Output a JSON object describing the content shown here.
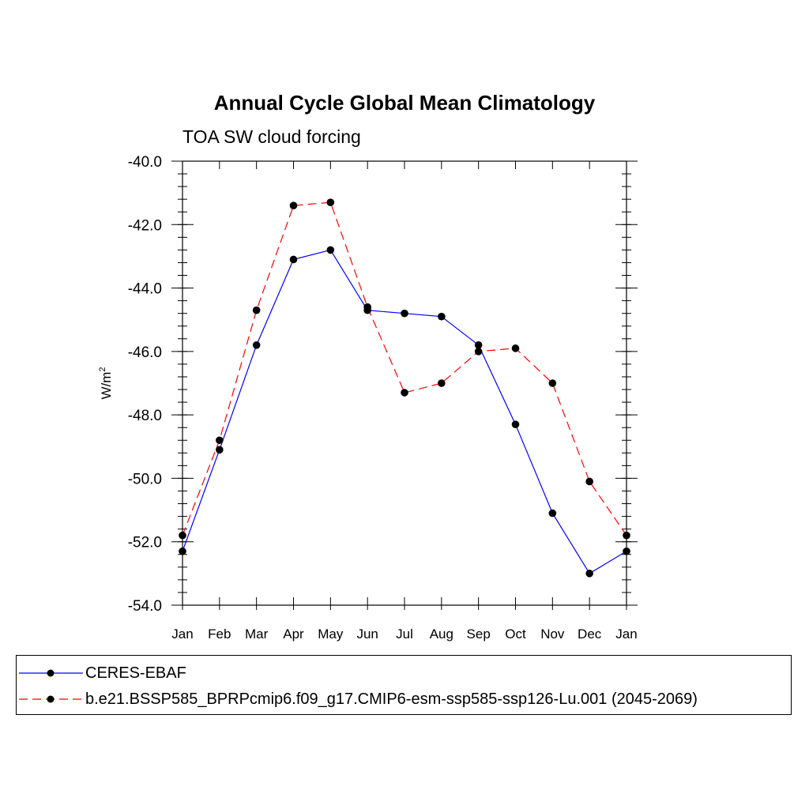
{
  "chart_data": {
    "type": "line",
    "title": "Annual Cycle Global Mean Climatology",
    "subtitle": "TOA SW cloud forcing",
    "ylabel": "W/m",
    "ylabel_superscript": "2",
    "categories": [
      "Jan",
      "Feb",
      "Mar",
      "Apr",
      "May",
      "Jun",
      "Jul",
      "Aug",
      "Sep",
      "Oct",
      "Nov",
      "Dec",
      "Jan"
    ],
    "ylim": [
      -54.0,
      -40.0
    ],
    "yticks": [
      "-40.0",
      "-42.0",
      "-44.0",
      "-46.0",
      "-48.0",
      "-50.0",
      "-52.0",
      "-54.0"
    ],
    "grid": false,
    "legend_position": "bottom",
    "series": [
      {
        "name": "CERES-EBAF",
        "color": "#0000ff",
        "dash": "solid",
        "values": [
          -52.3,
          -49.1,
          -45.8,
          -43.1,
          -42.8,
          -44.7,
          -44.8,
          -44.9,
          -45.8,
          -48.3,
          -51.1,
          -53.0,
          -52.3
        ]
      },
      {
        "name": "b.e21.BSSP585_BPRPcmip6.f09_g17.CMIP6-esm-ssp585-ssp126-Lu.001 (2045-2069)",
        "color": "#ff0000",
        "dash": "dashed",
        "values": [
          -51.8,
          -48.8,
          -44.7,
          -41.4,
          -41.3,
          -44.6,
          -47.3,
          -47.0,
          -46.0,
          -45.9,
          -47.0,
          -50.1,
          -51.8
        ]
      }
    ]
  }
}
